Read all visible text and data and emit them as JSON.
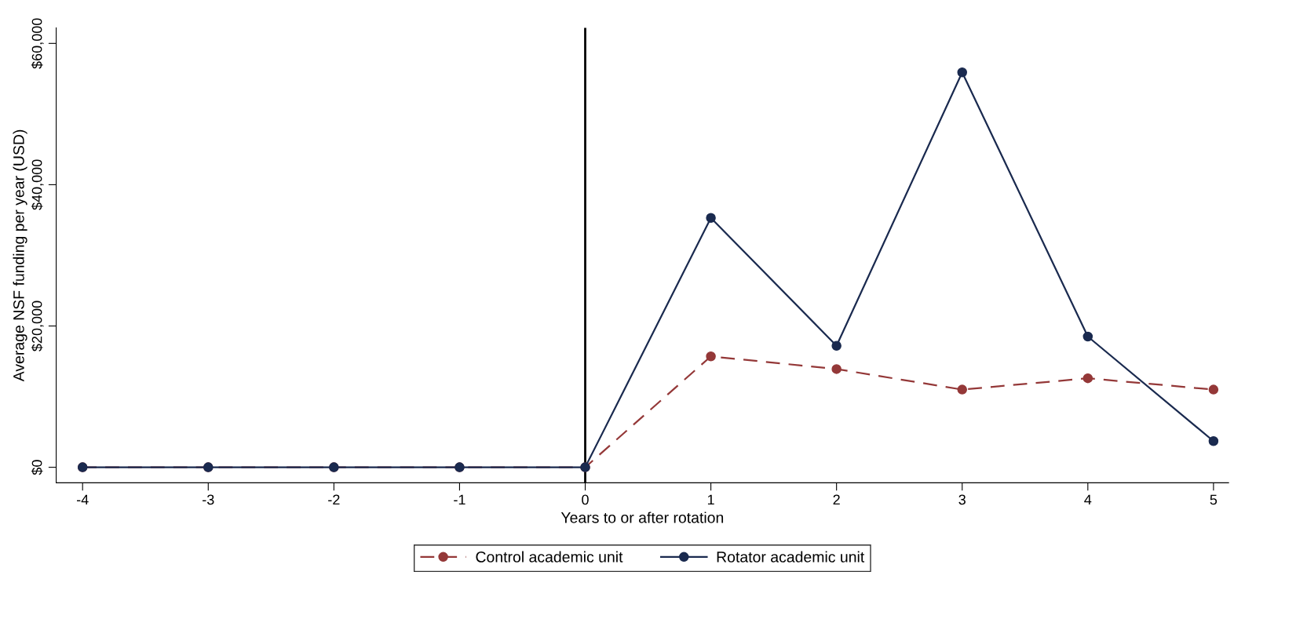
{
  "chart_data": {
    "type": "line",
    "xlabel": "Years to or after rotation",
    "ylabel": "Average NSF funding per year (USD)",
    "x": [
      -4,
      -3,
      -2,
      -1,
      0,
      1,
      2,
      3,
      4,
      5
    ],
    "series": [
      {
        "name": "Control academic unit",
        "color": "#943838",
        "line_style": "dashed",
        "values": [
          0,
          0,
          0,
          0,
          0,
          15700,
          13900,
          11000,
          12600,
          11000
        ]
      },
      {
        "name": "Rotator academic unit",
        "color": "#1a2a4f",
        "line_style": "solid",
        "values": [
          0,
          0,
          0,
          0,
          0,
          35300,
          17200,
          55900,
          18500,
          3700
        ]
      }
    ],
    "xlim": [
      -4.21,
      5.12
    ],
    "xticks": [
      -4,
      -3,
      -2,
      -1,
      0,
      1,
      2,
      3,
      4,
      5
    ],
    "ylim": [
      -2200,
      62200
    ],
    "yticks": [
      {
        "value": 0,
        "label": "$0"
      },
      {
        "value": 20000,
        "label": "$20,000"
      },
      {
        "value": 40000,
        "label": "$40,000"
      },
      {
        "value": 60000,
        "label": "$60,000"
      }
    ],
    "ref_lines": [
      {
        "axis": "x",
        "value": 0,
        "color": "#000000",
        "line_style": "solid"
      }
    ],
    "marker": "circle",
    "grid": false,
    "legend": "bottom"
  }
}
